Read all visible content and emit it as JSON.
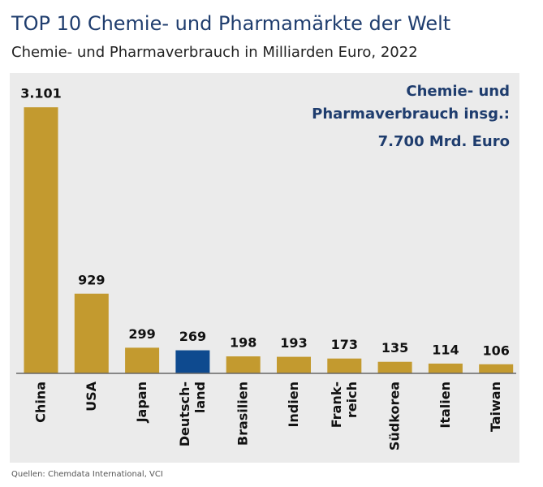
{
  "chart_data": {
    "type": "bar",
    "title": "TOP 10 Chemie- und Pharmamärkte der Welt",
    "subtitle": "Chemie- und Pharmaverbrauch in Milliarden Euro, 2022",
    "annotation": [
      "Chemie- und",
      "Pharmaverbrauch insg.:",
      "7.700 Mrd. Euro"
    ],
    "source": "Quellen: Chemdata International, VCI",
    "categories": [
      "China",
      "USA",
      "Japan",
      "Deutsch-\nland",
      "Brasilien",
      "Indien",
      "Frank-\nreich",
      "Südkorea",
      "Italien",
      "Taiwan"
    ],
    "values": [
      3101,
      929,
      299,
      269,
      198,
      193,
      173,
      135,
      114,
      106
    ],
    "value_labels": [
      "3.101",
      "929",
      "299",
      "269",
      "198",
      "193",
      "173",
      "135",
      "114",
      "106"
    ],
    "colors": [
      "#c39a2f",
      "#c39a2f",
      "#c39a2f",
      "#0e4a8f",
      "#c39a2f",
      "#c39a2f",
      "#c39a2f",
      "#c39a2f",
      "#c39a2f",
      "#c39a2f"
    ],
    "ylim": [
      0,
      3500
    ]
  }
}
